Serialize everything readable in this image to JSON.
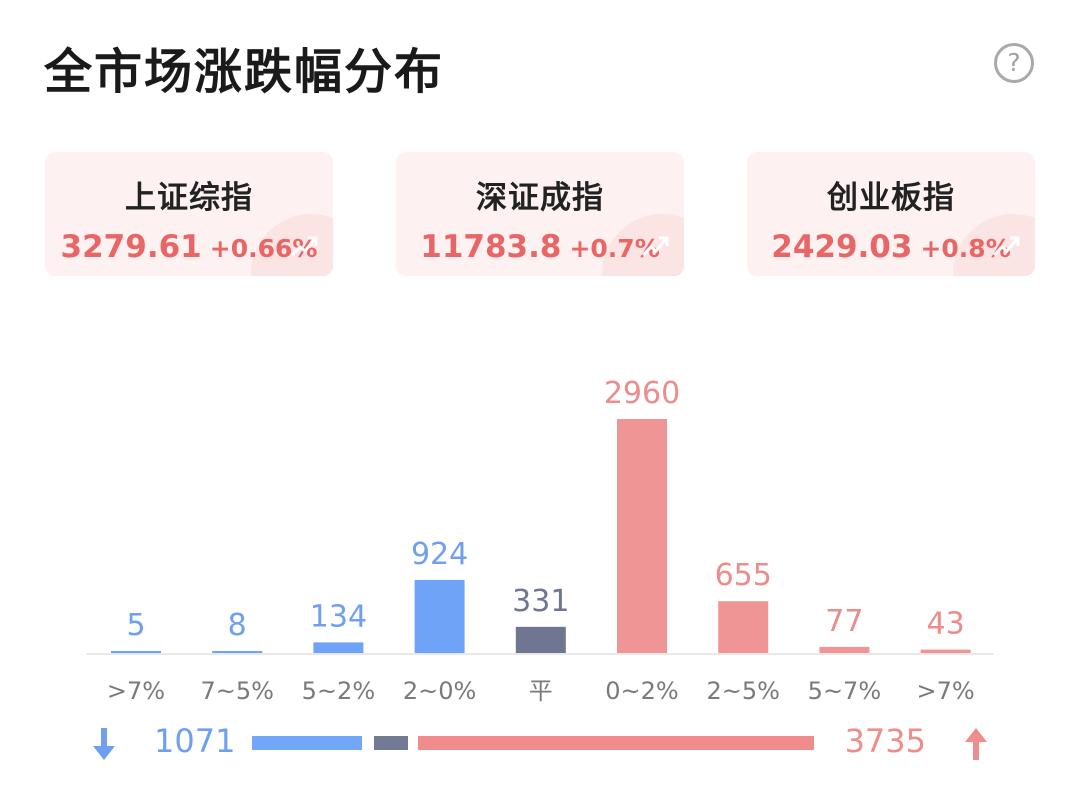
{
  "header": {
    "title": "全市场涨跌幅分布",
    "help_icon": "?"
  },
  "indices": [
    {
      "name": "上证综指",
      "value": "3279.61",
      "change": "+0.66%",
      "icon": "trend-up-icon"
    },
    {
      "name": "深证成指",
      "value": "11783.8",
      "change": "+0.7%",
      "icon": "trend-up-icon"
    },
    {
      "name": "创业板指",
      "value": "2429.03",
      "change": "+0.8%",
      "icon": "trend-up-icon"
    }
  ],
  "chart_data": {
    "type": "bar",
    "categories": [
      ">7%",
      "7~5%",
      "5~2%",
      "2~0%",
      "平",
      "0~2%",
      "2~5%",
      "5~7%",
      ">7%"
    ],
    "values": [
      5,
      8,
      134,
      924,
      331,
      2960,
      655,
      77,
      43
    ],
    "bar_groups": [
      "down",
      "down",
      "down",
      "down",
      "flat",
      "up",
      "up",
      "up",
      "up"
    ]
  },
  "summary": {
    "down_total": "1071",
    "up_total": "3735",
    "down_icon": "arrow-down-icon",
    "up_icon": "arrow-up-icon"
  },
  "colors": {
    "down_bar": "#6fa3f7",
    "down_label": "#6fa0f0",
    "flat_bar": "#6f7692",
    "flat_label": "#6f7692",
    "up_bar": "#f09595",
    "up_label": "#ee8b8b",
    "axis": "#e8e8e8",
    "tick_label": "#7a7a7a",
    "index_text": "#e86666"
  }
}
